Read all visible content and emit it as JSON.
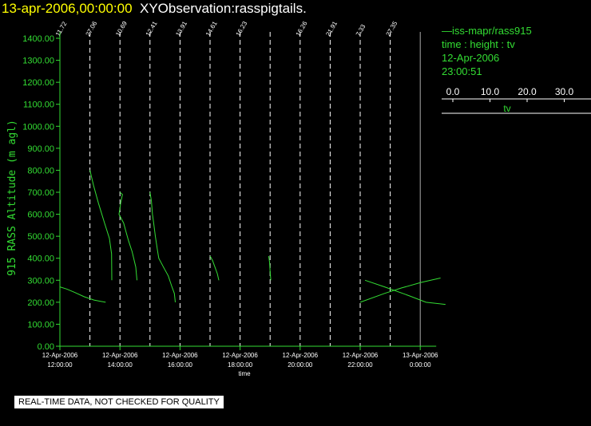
{
  "header": {
    "date_time": "13-apr-2006,00:00:00",
    "observation": "XYObservation:rasspigtails."
  },
  "legend": {
    "series_label": "iss-mapr/rass915",
    "line2": "time : height : tv",
    "date": "12-Apr-2006",
    "time": "23:00:51",
    "scale_ticks": [
      "0.0",
      "10.0",
      "20.0",
      "30.0"
    ],
    "scale_label": "tv"
  },
  "notice": "REAL-TIME DATA, NOT CHECKED FOR QUALITY",
  "colors": {
    "background": "#000000",
    "data": "#33dd33",
    "title": "#ffff00",
    "axis_text": "#33dd33",
    "dashed_lines": "#ffffff"
  },
  "chart_data": {
    "type": "line",
    "title": "",
    "xlabel": "time",
    "ylabel": "915 RASS Altitude (m agl)",
    "ylim": [
      0,
      1400
    ],
    "xlim": [
      "2006-04-12 12:00",
      "2006-04-13 00:00"
    ],
    "y_ticks": [
      "0.00",
      "100.00",
      "200.00",
      "300.00",
      "400.00",
      "500.00",
      "600.00",
      "700.00",
      "800.00",
      "900.00",
      "1000.00",
      "1100.00",
      "1200.00",
      "1300.00",
      "1400.00"
    ],
    "x_ticks": [
      {
        "date": "12-Apr-2006",
        "time": "12:00:00"
      },
      {
        "date": "12-Apr-2006",
        "time": "14:00:00"
      },
      {
        "date": "12-Apr-2006",
        "time": "16:00:00"
      },
      {
        "date": "12-Apr-2006",
        "time": "18:00:00"
      },
      {
        "date": "12-Apr-2006",
        "time": "20:00:00"
      },
      {
        "date": "12-Apr-2006",
        "time": "22:00:00"
      },
      {
        "date": "13-Apr-2006",
        "time": "0:00:00"
      }
    ],
    "profile_times": [
      "12:00",
      "13:00",
      "14:00",
      "15:00",
      "16:00",
      "17:00",
      "18:00",
      "19:00",
      "20:00",
      "21:00",
      "22:00",
      "23:00"
    ],
    "profile_labels": [
      "11.72",
      "27.06",
      "10.69",
      "12.41",
      "13.91",
      "14.61",
      "16.23",
      "",
      "16.26",
      "21.91",
      "7.33",
      "27.35"
    ],
    "series": [
      {
        "name": "iss-mapr/rass915",
        "profiles": [
          {
            "time": "12:00",
            "points": [
              [
                0.0,
                270
              ],
              [
                2.8,
                260
              ],
              [
                6.0,
                245
              ],
              [
                10.0,
                225
              ],
              [
                14.0,
                210
              ],
              [
                18.8,
                200
              ]
            ]
          },
          {
            "time": "13:00",
            "points": [
              [
                0.0,
                800
              ],
              [
                1.5,
                730
              ],
              [
                3.5,
                650
              ],
              [
                6.0,
                560
              ],
              [
                8.0,
                490
              ],
              [
                8.9,
                420
              ],
              [
                9.0,
                300
              ]
            ]
          },
          {
            "time": "14:00",
            "points": [
              [
                0.0,
                700
              ],
              [
                1.0,
                690
              ],
              [
                0.3,
                650
              ],
              [
                -0.4,
                600
              ],
              [
                1.5,
                560
              ],
              [
                2.5,
                520
              ],
              [
                3.5,
                480
              ],
              [
                5.0,
                430
              ],
              [
                6.5,
                360
              ],
              [
                7.0,
                300
              ]
            ]
          },
          {
            "time": "15:00",
            "points": [
              [
                0.0,
                700
              ],
              [
                0.6,
                660
              ],
              [
                1.0,
                600
              ],
              [
                1.5,
                560
              ],
              [
                2.2,
                500
              ],
              [
                3.0,
                440
              ],
              [
                3.6,
                400
              ],
              [
                5.5,
                360
              ],
              [
                7.5,
                320
              ],
              [
                9.0,
                270
              ],
              [
                10.0,
                240
              ],
              [
                10.4,
                200
              ]
            ]
          },
          {
            "time": "17:00",
            "points": [
              [
                0.0,
                410
              ],
              [
                1.0,
                390
              ],
              [
                2.0,
                360
              ],
              [
                3.0,
                330
              ],
              [
                3.6,
                300
              ]
            ]
          },
          {
            "time": "19:00",
            "points": [
              [
                -0.6,
                410
              ],
              [
                -0.2,
                380
              ],
              [
                0.0,
                340
              ],
              [
                0.3,
                300
              ]
            ]
          },
          {
            "time": "22:00",
            "points": [
              [
                0.0,
                200
              ],
              [
                10.0,
                240
              ],
              [
                17.0,
                265
              ],
              [
                25.0,
                290
              ],
              [
                33.0,
                310
              ]
            ]
          },
          {
            "time": "22:00",
            "points": [
              [
                2.0,
                300
              ],
              [
                10.0,
                270
              ],
              [
                20.0,
                230
              ],
              [
                27.0,
                200
              ],
              [
                35.0,
                190
              ]
            ]
          }
        ]
      }
    ]
  }
}
